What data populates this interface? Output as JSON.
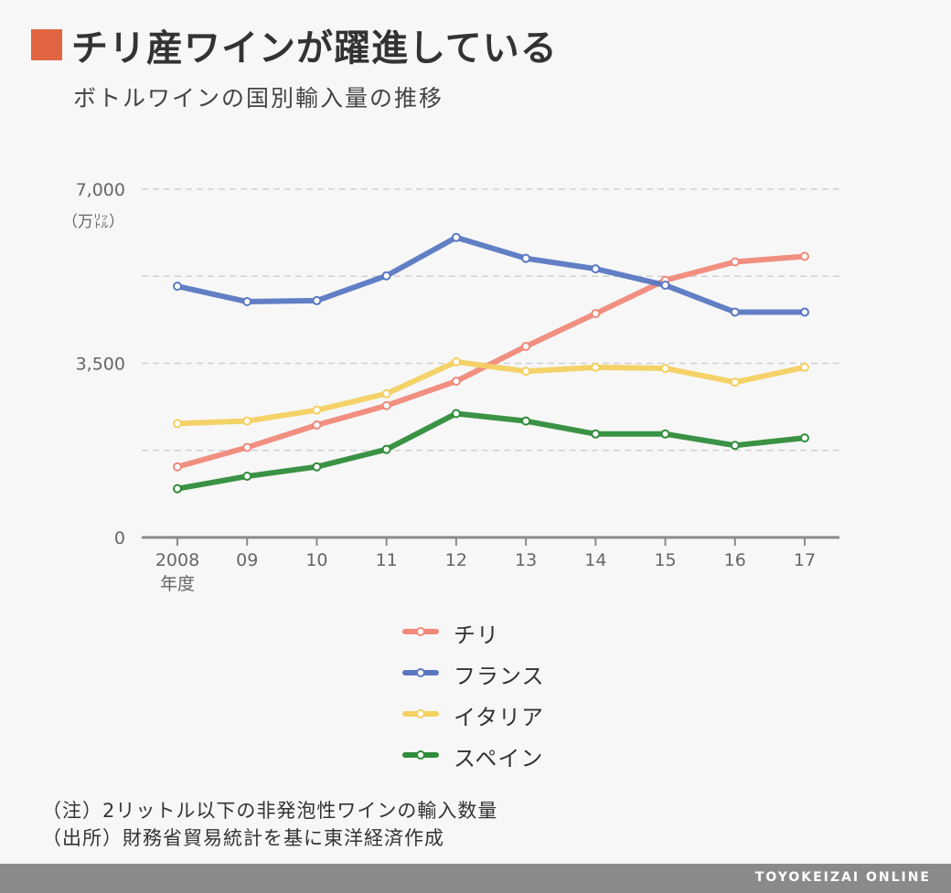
{
  "header": {
    "title": "チリ産ワインが躍進している",
    "subtitle": "ボトルワインの国別輸入量の推移",
    "accent_color": "#e06440"
  },
  "chart_data": {
    "type": "line",
    "title": "チリ産ワインが躍進している",
    "subtitle": "ボトルワインの国別輸入量の推移",
    "y_unit": "（万㍑）",
    "x_axis_suffix": "年度",
    "categories": [
      "2008",
      "09",
      "10",
      "11",
      "12",
      "13",
      "14",
      "15",
      "16",
      "17"
    ],
    "y_ticks": [
      "7,000",
      "3,500",
      "0"
    ],
    "y_tick_values": [
      7000,
      3500,
      0
    ],
    "ylim": [
      0,
      7000
    ],
    "gridlines": [
      1750,
      3500,
      5250,
      7000
    ],
    "legend_position": "bottom-center",
    "series": [
      {
        "name": "チリ",
        "color": "#f0897a",
        "values": [
          1420,
          1810,
          2260,
          2650,
          3140,
          3840,
          4500,
          5170,
          5540,
          5650
        ]
      },
      {
        "name": "フランス",
        "color": "#5a78c2",
        "values": [
          5050,
          4740,
          4760,
          5260,
          6030,
          5610,
          5400,
          5070,
          4530,
          4530
        ]
      },
      {
        "name": "イタリア",
        "color": "#f3d060",
        "values": [
          2290,
          2340,
          2560,
          2890,
          3530,
          3340,
          3420,
          3400,
          3120,
          3420
        ]
      },
      {
        "name": "スペイン",
        "color": "#2f8c3a",
        "values": [
          980,
          1230,
          1420,
          1770,
          2490,
          2340,
          2080,
          2080,
          1850,
          2000
        ]
      }
    ]
  },
  "notes": {
    "note1": "（注）2リットル以下の非発泡性ワインの輸入数量",
    "note2": "（出所）財務省貿易統計を基に東洋経済作成"
  },
  "footer": {
    "brand": "TOYOKEIZAI ONLINE"
  }
}
